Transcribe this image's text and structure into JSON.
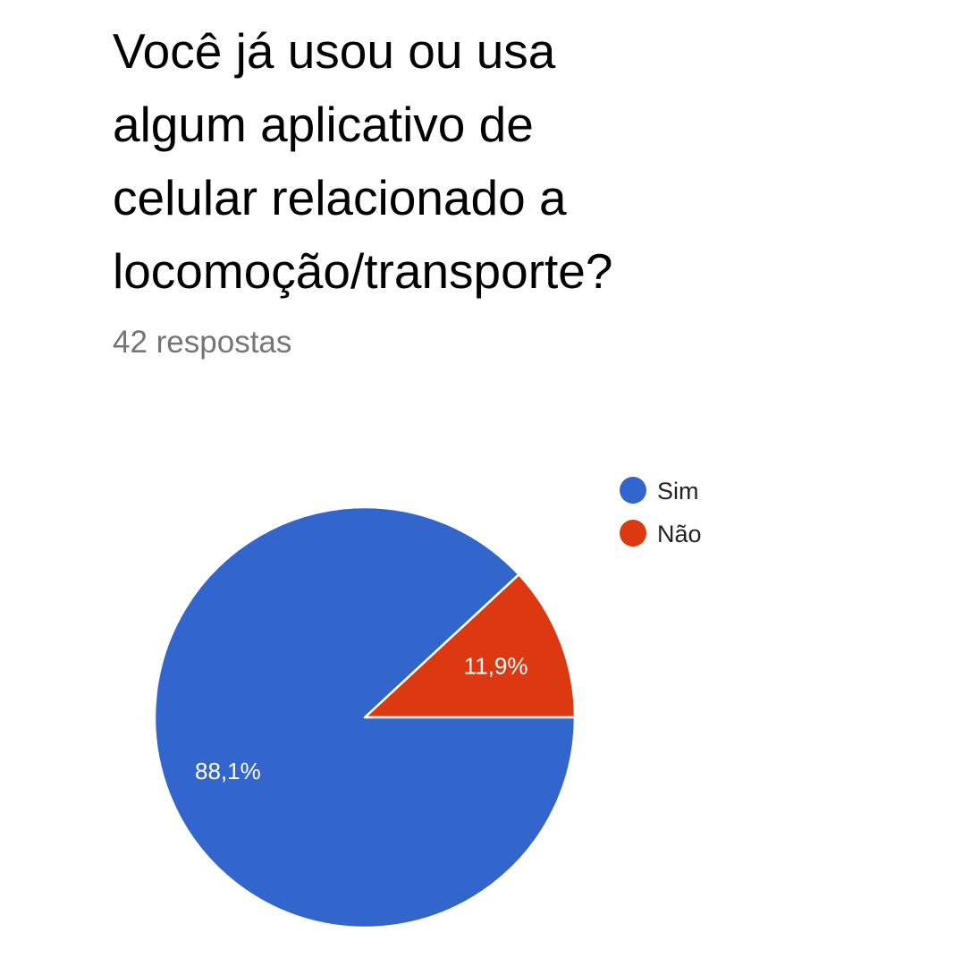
{
  "question": {
    "title_lines": [
      "Você já usou ou usa",
      "algum aplicativo de",
      "celular relacionado a",
      "locomoção/transporte?"
    ],
    "responses": "42 respostas"
  },
  "chart_data": {
    "type": "pie",
    "start": "3-o'clock",
    "direction": "counter-clockwise",
    "legend_position": "top-right",
    "slices": [
      {
        "name": "Não",
        "percent": 11.9,
        "label": "11,9%",
        "color": "#dc3912"
      },
      {
        "name": "Sim",
        "percent": 88.1,
        "label": "88,1%",
        "color": "#3366cc"
      }
    ],
    "legend": [
      {
        "name": "Sim",
        "color": "#3366cc"
      },
      {
        "name": "Não",
        "color": "#dc3912"
      }
    ]
  }
}
